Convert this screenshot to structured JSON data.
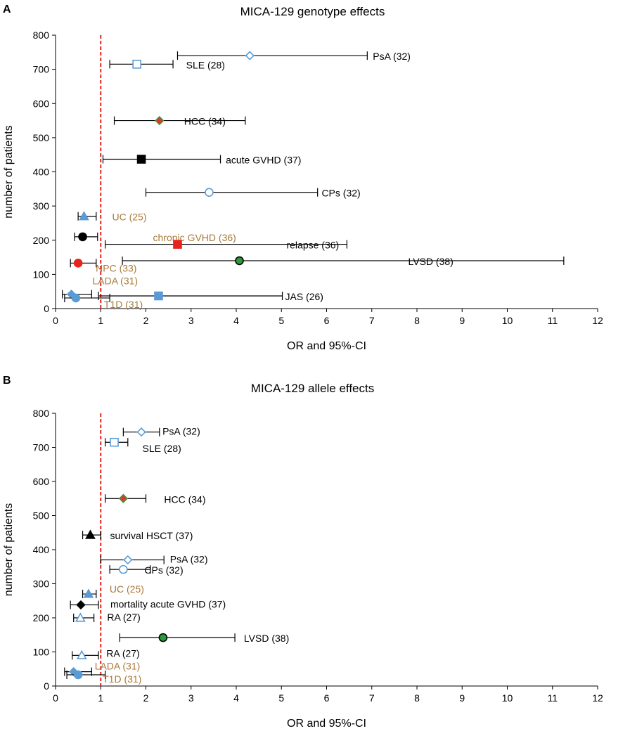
{
  "chart_data": [
    {
      "type": "scatter",
      "panel_label": "A",
      "title": "MICA-129 genotype effects",
      "xlabel": "OR and 95%-CI",
      "ylabel": "number of patients",
      "xlim": [
        0,
        12
      ],
      "ylim": [
        0,
        800
      ],
      "xticks": [
        "0",
        "1",
        "2",
        "3",
        "4",
        "5",
        "6",
        "7",
        "8",
        "9",
        "10",
        "11",
        "12"
      ],
      "yticks": [
        "0",
        "100",
        "200",
        "300",
        "400",
        "500",
        "600",
        "700",
        "800"
      ],
      "reference_line_x": 1,
      "points": [
        {
          "label": "PsA (32)",
          "x": 4.3,
          "y": 740,
          "lo": 2.7,
          "hi": 6.9,
          "marker": "diamond-open",
          "fill": "#ffffff",
          "stroke": "#5b9bd5",
          "label_color": "#000000"
        },
        {
          "label": "SLE (28)",
          "x": 1.8,
          "y": 715,
          "lo": 1.2,
          "hi": 2.6,
          "marker": "square-open",
          "fill": "#ffffff",
          "stroke": "#5b9bd5",
          "label_color": "#000000"
        },
        {
          "label": "HCC (34)",
          "x": 2.3,
          "y": 550,
          "lo": 1.3,
          "hi": 4.2,
          "marker": "diamond",
          "fill": "#e8322c",
          "stroke": "#3a9a3a",
          "label_color": "#000000"
        },
        {
          "label": "acute GVHD (37)",
          "x": 1.9,
          "y": 437,
          "lo": 1.05,
          "hi": 3.65,
          "marker": "square",
          "fill": "#000000",
          "stroke": "#000000",
          "label_color": "#000000"
        },
        {
          "label": "CPs (32)",
          "x": 3.4,
          "y": 340,
          "lo": 2.0,
          "hi": 5.8,
          "marker": "circle-open",
          "fill": "#ffffff",
          "stroke": "#5b9bd5",
          "label_color": "#000000"
        },
        {
          "label": "UC (25)",
          "x": 0.63,
          "y": 270,
          "lo": 0.5,
          "hi": 0.9,
          "marker": "triangle",
          "fill": "#5b9bd5",
          "stroke": "#5b9bd5",
          "label_color": "#a97a3a"
        },
        {
          "label": "chronic GVHD (36)",
          "x": 0.6,
          "y": 210,
          "lo": 0.42,
          "hi": 0.93,
          "marker": "circle",
          "fill": "#000000",
          "stroke": "#000000",
          "label_color": "#a97a3a"
        },
        {
          "label": "relapse (36)",
          "x": 2.7,
          "y": 188,
          "lo": 1.1,
          "hi": 6.45,
          "marker": "square",
          "fill": "#e8221c",
          "stroke": "#e8221c",
          "label_color": "#000000"
        },
        {
          "label": "LVSD (38)",
          "x": 4.07,
          "y": 140,
          "lo": 1.48,
          "hi": 11.25,
          "marker": "circle",
          "fill": "#2a9a3a",
          "stroke": "#000000",
          "label_color": "#000000"
        },
        {
          "label": "NPC (33)",
          "x": 0.5,
          "y": 133,
          "lo": 0.33,
          "hi": 0.9,
          "marker": "circle",
          "fill": "#e8221c",
          "stroke": "#e8221c",
          "label_color": "#a97a3a"
        },
        {
          "label": "LADA (31)",
          "x": 0.35,
          "y": 42,
          "lo": 0.15,
          "hi": 0.8,
          "marker": "diamond",
          "fill": "#5b9bd5",
          "stroke": "#5b9bd5",
          "label_color": "#a97a3a"
        },
        {
          "label": "JAS (26)",
          "x": 2.28,
          "y": 37,
          "lo": 0.95,
          "hi": 5.02,
          "marker": "square",
          "fill": "#5b9bd5",
          "stroke": "#5b9bd5",
          "label_color": "#000000"
        },
        {
          "label": "T1D (31)",
          "x": 0.45,
          "y": 31,
          "lo": 0.2,
          "hi": 1.2,
          "marker": "circle",
          "fill": "#5b9bd5",
          "stroke": "#5b9bd5",
          "label_color": "#a97a3a"
        }
      ]
    },
    {
      "type": "scatter",
      "panel_label": "B",
      "title": "MICA-129 allele effects",
      "xlabel": "OR and 95%-CI",
      "ylabel": "number of patients",
      "xlim": [
        0,
        12
      ],
      "ylim": [
        0,
        800
      ],
      "xticks": [
        "0",
        "1",
        "2",
        "3",
        "4",
        "5",
        "6",
        "7",
        "8",
        "9",
        "10",
        "11",
        "12"
      ],
      "yticks": [
        "0",
        "100",
        "200",
        "300",
        "400",
        "500",
        "600",
        "700",
        "800"
      ],
      "reference_line_x": 1,
      "points": [
        {
          "label": "PsA (32)",
          "x": 1.9,
          "y": 745,
          "lo": 1.5,
          "hi": 2.3,
          "marker": "diamond-open",
          "fill": "#ffffff",
          "stroke": "#5b9bd5",
          "label_color": "#000000"
        },
        {
          "label": "SLE (28)",
          "x": 1.3,
          "y": 715,
          "lo": 1.1,
          "hi": 1.6,
          "marker": "square-open",
          "fill": "#ffffff",
          "stroke": "#5b9bd5",
          "label_color": "#000000"
        },
        {
          "label": "HCC (34)",
          "x": 1.5,
          "y": 550,
          "lo": 1.1,
          "hi": 2.0,
          "marker": "diamond",
          "fill": "#e8322c",
          "stroke": "#3a9a3a",
          "label_color": "#000000"
        },
        {
          "label": "survival HSCT (37)",
          "x": 0.77,
          "y": 443,
          "lo": 0.6,
          "hi": 1.0,
          "marker": "triangle",
          "fill": "#000000",
          "stroke": "#000000",
          "label_color": "#000000"
        },
        {
          "label": "PsA (32)",
          "x": 1.6,
          "y": 370,
          "lo": 1.0,
          "hi": 2.4,
          "marker": "diamond-open",
          "fill": "#ffffff",
          "stroke": "#5b9bd5",
          "label_color": "#000000"
        },
        {
          "label": "CPs (32)",
          "x": 1.5,
          "y": 342,
          "lo": 1.2,
          "hi": 2.1,
          "marker": "circle-open",
          "fill": "#ffffff",
          "stroke": "#5b9bd5",
          "label_color": "#000000"
        },
        {
          "label": "UC (25)",
          "x": 0.73,
          "y": 270,
          "lo": 0.6,
          "hi": 0.9,
          "marker": "triangle",
          "fill": "#5b9bd5",
          "stroke": "#5b9bd5",
          "label_color": "#a97a3a"
        },
        {
          "label": "mortality  acute GVHD (37)",
          "x": 0.56,
          "y": 238,
          "lo": 0.33,
          "hi": 0.95,
          "marker": "diamond",
          "fill": "#000000",
          "stroke": "#000000",
          "label_color": "#000000"
        },
        {
          "label": "RA (27)",
          "x": 0.55,
          "y": 200,
          "lo": 0.4,
          "hi": 0.85,
          "marker": "triangle-open",
          "fill": "#ffffff",
          "stroke": "#5b9bd5",
          "label_color": "#000000"
        },
        {
          "label": "LVSD (38)",
          "x": 2.38,
          "y": 142,
          "lo": 1.42,
          "hi": 3.97,
          "marker": "circle",
          "fill": "#2a9a3a",
          "stroke": "#000000",
          "label_color": "#000000"
        },
        {
          "label": "RA (27)",
          "x": 0.58,
          "y": 90,
          "lo": 0.37,
          "hi": 0.95,
          "marker": "triangle-open",
          "fill": "#ffffff",
          "stroke": "#5b9bd5",
          "label_color": "#000000"
        },
        {
          "label": "LADA (31)",
          "x": 0.4,
          "y": 42,
          "lo": 0.2,
          "hi": 0.8,
          "marker": "diamond",
          "fill": "#5b9bd5",
          "stroke": "#5b9bd5",
          "label_color": "#a97a3a"
        },
        {
          "label": "T1D (31)",
          "x": 0.5,
          "y": 33,
          "lo": 0.25,
          "hi": 1.1,
          "marker": "circle",
          "fill": "#5b9bd5",
          "stroke": "#5b9bd5",
          "label_color": "#a97a3a"
        }
      ]
    }
  ]
}
